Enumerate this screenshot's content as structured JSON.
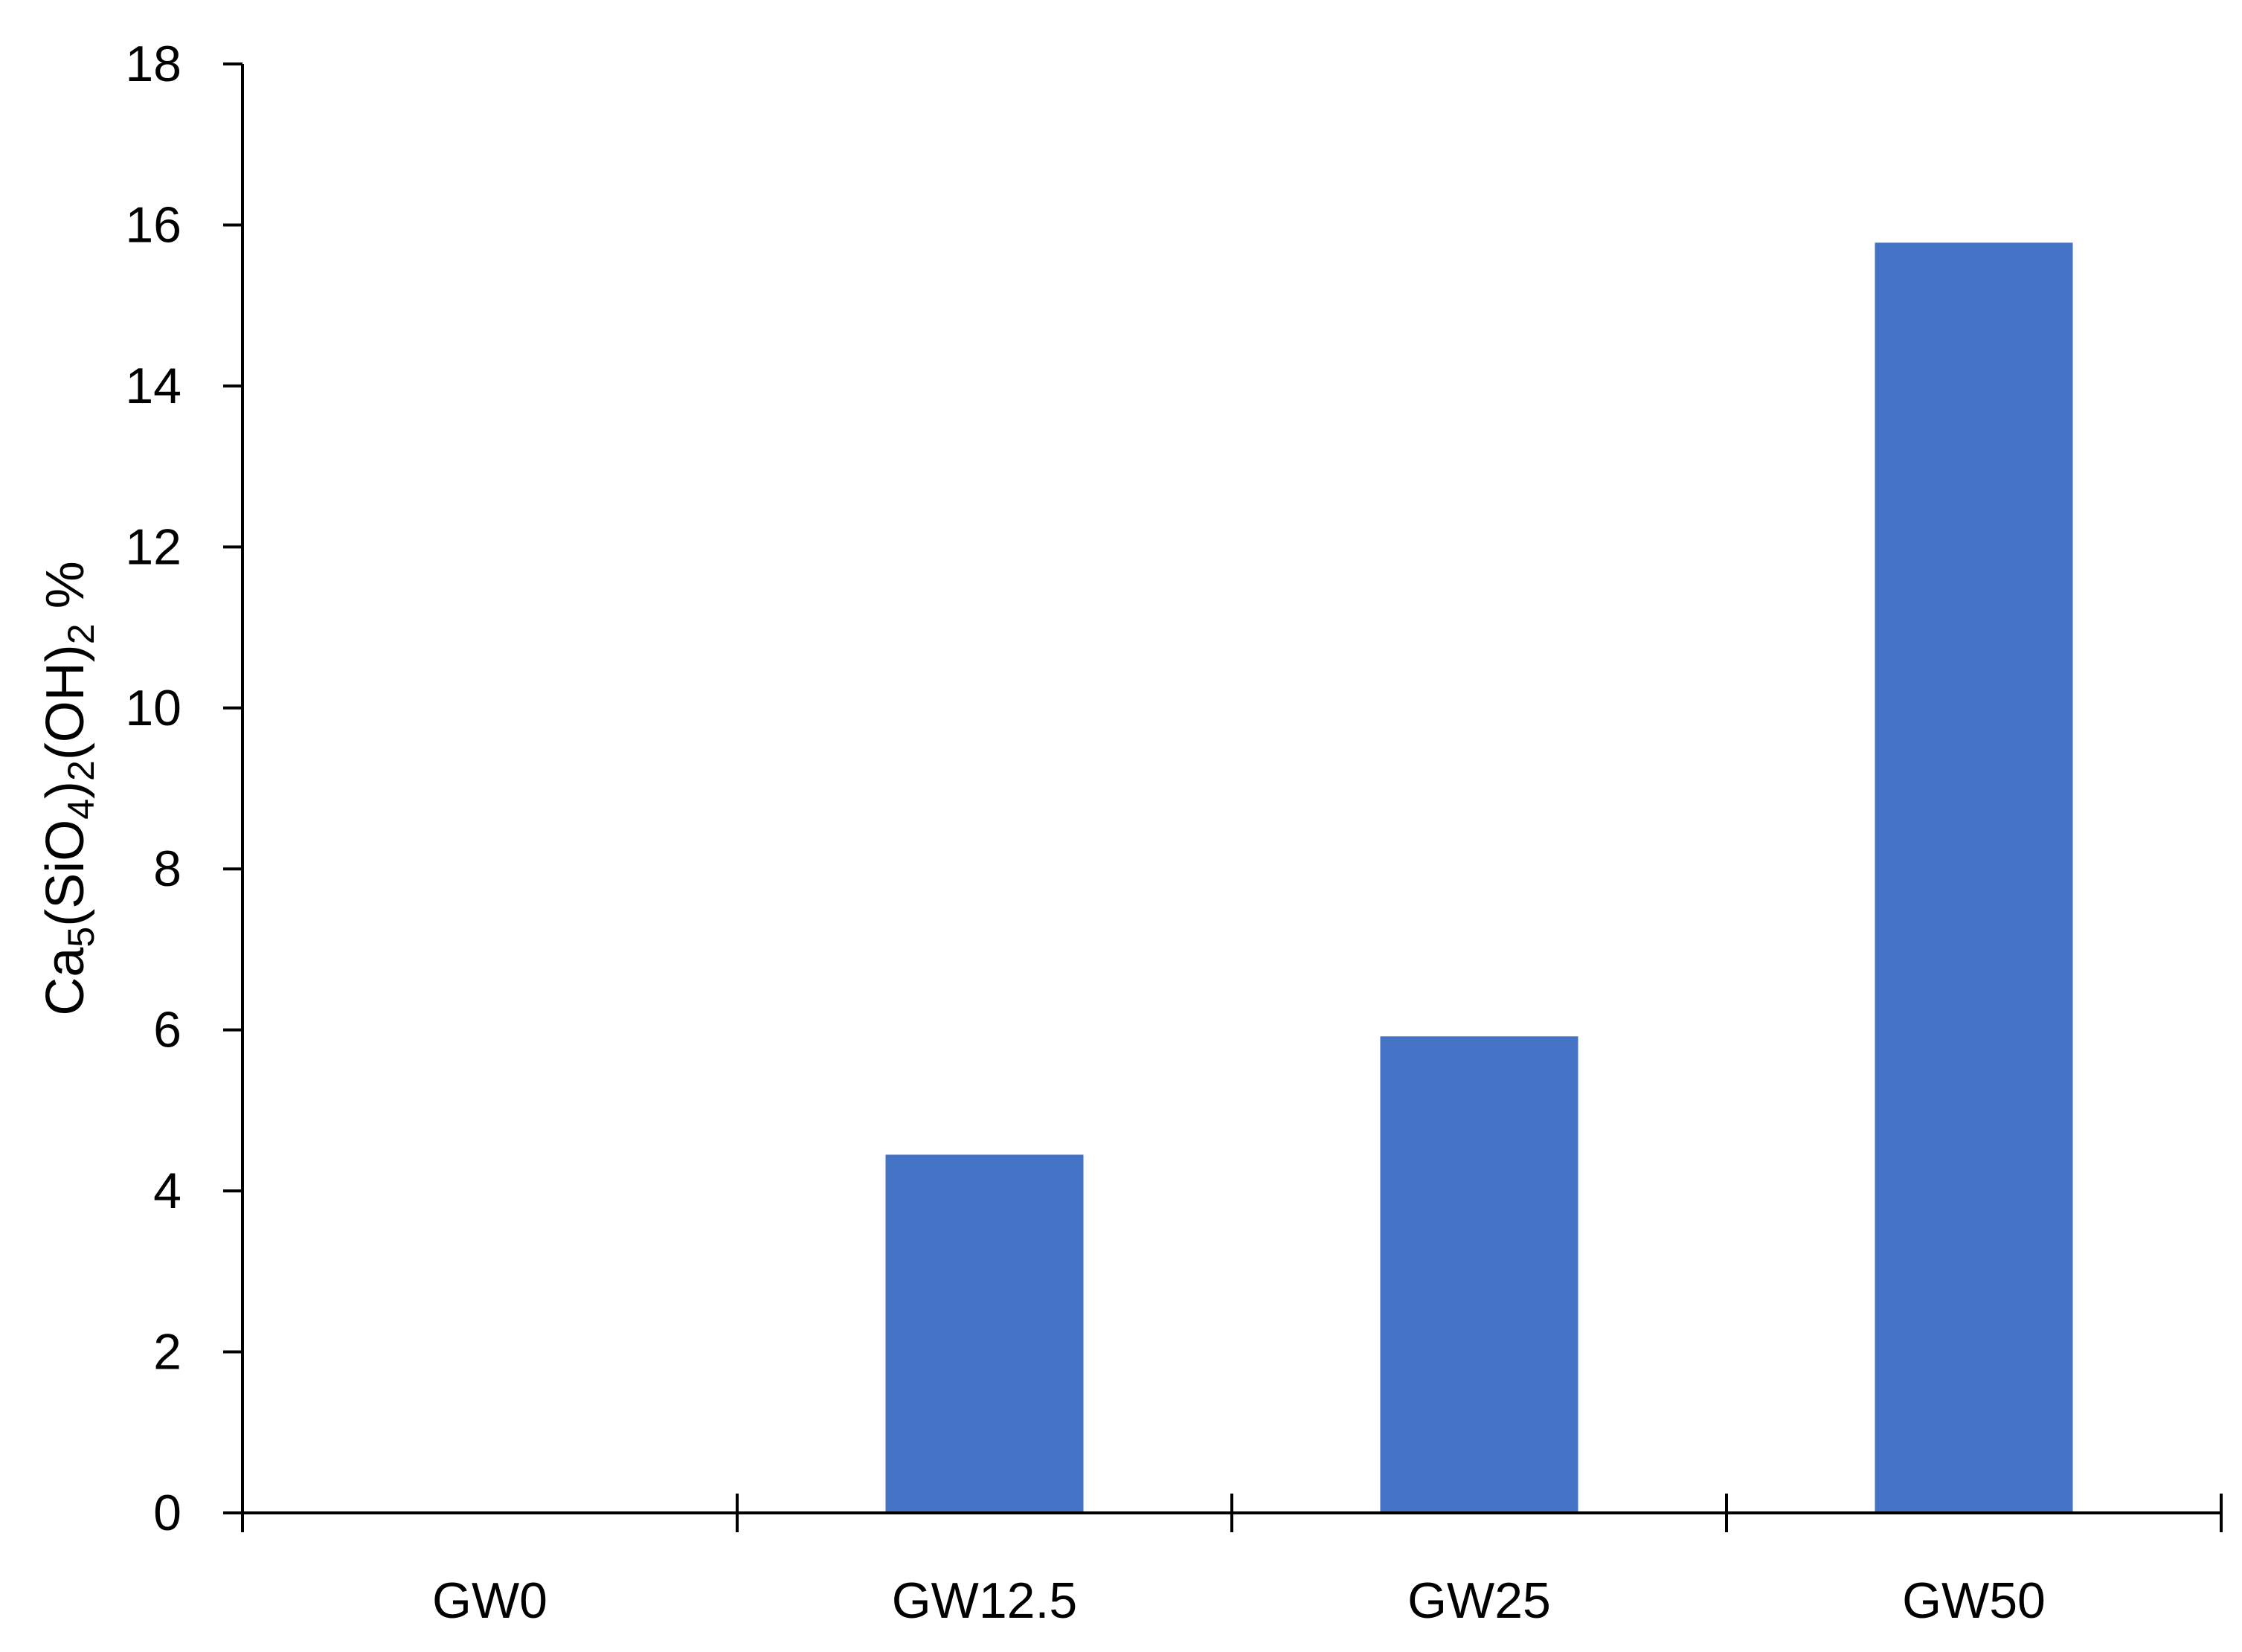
{
  "chart_data": {
    "type": "bar",
    "title": "",
    "xlabel": "",
    "ylabel": {
      "parts": [
        {
          "text": "Ca",
          "sub": false
        },
        {
          "text": "5",
          "sub": true
        },
        {
          "text": "(SiO",
          "sub": false
        },
        {
          "text": "4",
          "sub": true
        },
        {
          "text": ")",
          "sub": false
        },
        {
          "text": "2",
          "sub": true
        },
        {
          "text": "(OH)",
          "sub": false
        },
        {
          "text": "2",
          "sub": true
        },
        {
          "text": " %",
          "sub": false
        }
      ]
    },
    "categories": [
      "GW0",
      "GW12.5",
      "GW25",
      "GW50"
    ],
    "values": [
      0,
      4.45,
      5.92,
      15.78
    ],
    "ylim": [
      0,
      18
    ],
    "yticks": [
      "0",
      "2",
      "4",
      "6",
      "8",
      "10",
      "12",
      "14",
      "16",
      "18"
    ],
    "bar_color": "#4472C4",
    "grid": false,
    "legend": "none"
  }
}
